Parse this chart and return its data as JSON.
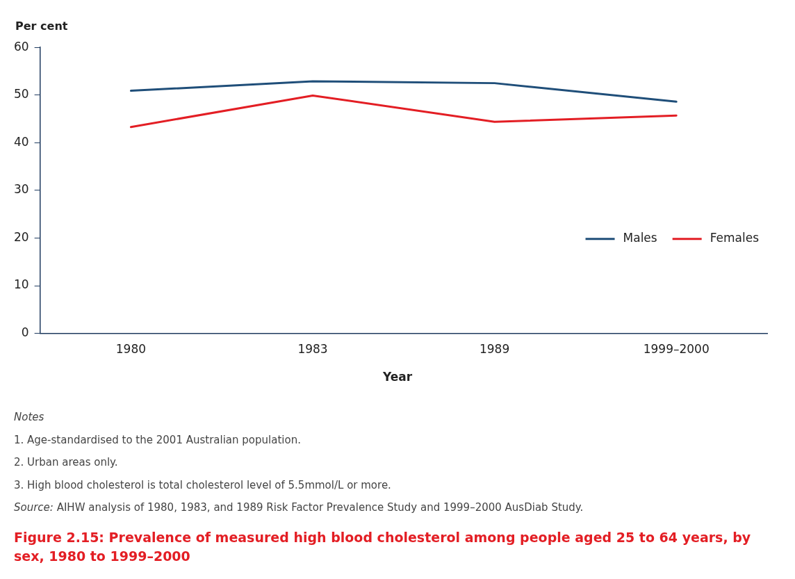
{
  "chart_data": {
    "type": "line",
    "title": "Figure 2.15: Prevalence of measured high blood cholesterol among people aged 25 to 64 years, by sex, 1980 to 1999–2000",
    "ylabel": "Per cent",
    "xlabel": "Year",
    "categories": [
      "1980",
      "1983",
      "1989",
      "1999–2000"
    ],
    "series": [
      {
        "name": "Males",
        "color": "#1f4e79",
        "values": [
          50.9,
          52.9,
          52.5,
          48.6
        ]
      },
      {
        "name": "Females",
        "color": "#e31e24",
        "values": [
          43.3,
          49.9,
          44.4,
          45.7
        ]
      }
    ],
    "ylim": [
      0,
      60
    ],
    "yticks": [
      0,
      10,
      20,
      30,
      40,
      50,
      60
    ],
    "grid": false,
    "legend": "right",
    "marker": "none",
    "annotations": [
      "Notes",
      "1.  Age-standardised to the 2001 Australian population.",
      "2.  Urban areas only.",
      "3.  High blood cholesterol is total cholesterol level of 5.5mmol/L or more.",
      "Source: AIHW analysis of 1980, 1983, and 1989 Risk Factor Prevalence Study and 1999–2000 AusDiab Study."
    ]
  }
}
